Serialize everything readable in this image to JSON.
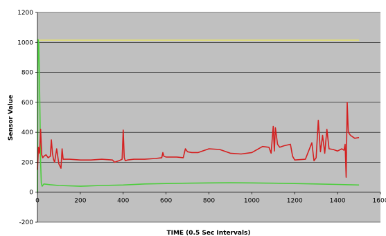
{
  "chart_data": {
    "type": "line",
    "title": "",
    "xlabel": "TIME (0.5 Sec Intervals)",
    "ylabel": "Sensor Value",
    "xlim": [
      0,
      1600
    ],
    "ylim": [
      -200,
      1200
    ],
    "x_ticks": [
      "0",
      "200",
      "400",
      "600",
      "800",
      "1000",
      "1200",
      "1400",
      "1600"
    ],
    "y_ticks": [
      "-200",
      "0",
      "200",
      "400",
      "600",
      "800",
      "1000",
      "1200"
    ],
    "grid": true,
    "legend": "none",
    "plot_background": "#c0c0c0",
    "series": [
      {
        "color": "#e5e06a",
        "x": [
          0,
          5,
          10,
          50,
          200,
          400,
          600,
          800,
          1000,
          1200,
          1400,
          1500
        ],
        "y": [
          1015,
          1015,
          1015,
          1015,
          1015,
          1015,
          1015,
          1015,
          1015,
          1015,
          1015,
          1015
        ]
      },
      {
        "color": "#4ccd3c",
        "x": [
          0,
          3,
          6,
          9,
          12,
          15,
          18,
          22,
          30,
          60,
          100,
          200,
          300,
          400,
          500,
          600,
          700,
          800,
          900,
          1000,
          1100,
          1200,
          1300,
          1400,
          1450,
          1500
        ],
        "y": [
          0,
          1020,
          1000,
          800,
          520,
          200,
          60,
          40,
          55,
          50,
          45,
          40,
          45,
          48,
          55,
          58,
          60,
          62,
          63,
          62,
          60,
          58,
          55,
          52,
          50,
          48
        ]
      },
      {
        "color": "#d42020",
        "x": [
          0,
          5,
          10,
          15,
          20,
          25,
          30,
          40,
          50,
          60,
          65,
          70,
          75,
          80,
          90,
          100,
          110,
          115,
          120,
          150,
          200,
          250,
          300,
          350,
          360,
          380,
          395,
          400,
          405,
          410,
          420,
          450,
          500,
          550,
          580,
          585,
          590,
          600,
          650,
          680,
          690,
          700,
          720,
          750,
          800,
          850,
          900,
          950,
          1000,
          1050,
          1080,
          1090,
          1100,
          1105,
          1110,
          1120,
          1130,
          1150,
          1180,
          1190,
          1200,
          1250,
          1280,
          1290,
          1300,
          1310,
          1320,
          1330,
          1340,
          1350,
          1360,
          1380,
          1400,
          1420,
          1430,
          1435,
          1440,
          1445,
          1450,
          1460,
          1480,
          1500
        ],
        "y": [
          150,
          300,
          260,
          420,
          250,
          230,
          240,
          250,
          230,
          240,
          350,
          260,
          220,
          200,
          290,
          190,
          160,
          290,
          220,
          220,
          215,
          215,
          220,
          215,
          200,
          210,
          220,
          415,
          230,
          210,
          215,
          220,
          220,
          225,
          230,
          265,
          240,
          235,
          235,
          230,
          290,
          270,
          265,
          265,
          290,
          285,
          260,
          255,
          265,
          305,
          300,
          260,
          440,
          275,
          430,
          320,
          300,
          310,
          320,
          240,
          215,
          220,
          330,
          210,
          230,
          480,
          270,
          380,
          260,
          420,
          290,
          285,
          275,
          290,
          280,
          320,
          100,
          600,
          400,
          380,
          360,
          365
        ]
      }
    ]
  }
}
